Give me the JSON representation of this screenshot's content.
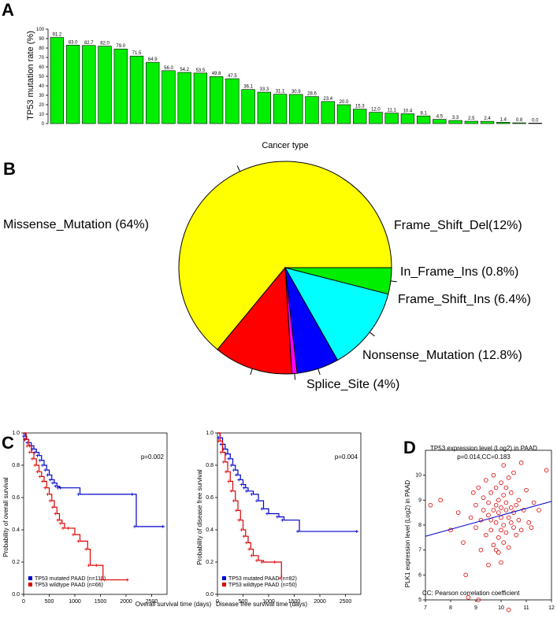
{
  "panels": {
    "a": "A",
    "b": "B",
    "c": "C",
    "d": "D"
  },
  "chart_data": [
    {
      "type": "bar",
      "panel": "A",
      "ylabel": "TP53 mutation rate (%)",
      "xlabel": "Cancer type",
      "ylim": [
        0,
        100
      ],
      "yticks": [
        0,
        10,
        20,
        30,
        40,
        50,
        60,
        70,
        80,
        90,
        100
      ],
      "values": [
        91.2,
        83.0,
        82.7,
        82.0,
        79.0,
        71.5,
        64.9,
        56.0,
        54.2,
        53.5,
        49.8,
        47.5,
        36.1,
        33.3,
        31.1,
        30.9,
        28.6,
        23.4,
        20.0,
        15.3,
        12.0,
        11.1,
        10.4,
        8.1,
        4.5,
        3.3,
        2.5,
        2.4,
        1.4,
        0.8,
        0.0
      ],
      "value_labels": [
        "91.2",
        "83.0",
        "82.7",
        "82.0",
        "79.0",
        "71.5",
        "64.9",
        "56.0",
        "54.2",
        "53.5",
        "49.8",
        "47.5",
        "36.1",
        "33.3",
        "31.1",
        "30.9",
        "28.6",
        "23.4",
        "20.0",
        "15.3",
        "12.0",
        "11.1",
        "10.4",
        "8.1",
        "4.5",
        "3.3",
        "2.5",
        "2.4",
        "1.4",
        "0.8",
        "0.0"
      ],
      "color": "#00ee00"
    },
    {
      "type": "pie",
      "panel": "B",
      "slices": [
        {
          "label": "Missense_Mutation (64%)",
          "value": 64,
          "color": "#ffff00"
        },
        {
          "label": "Frame_Shift_Del(12%)",
          "value": 12,
          "color": "#ff0000"
        },
        {
          "label": "In_Frame_Ins (0.8%)",
          "value": 0.8,
          "color": "#ff00ff"
        },
        {
          "label": "Frame_Shift_Ins (6.4%)",
          "value": 6.4,
          "color": "#0000ff"
        },
        {
          "label": "Nonsense_Mutation (12.8%)",
          "value": 12.8,
          "color": "#00ffff"
        },
        {
          "label": "Splice_Site (4%)",
          "value": 4,
          "color": "#00ee00"
        }
      ]
    },
    {
      "type": "line",
      "panel": "C",
      "subtype": "kaplan-meier",
      "xlabel": "Overall survival time (days)",
      "ylabel": "Probability of overall survival",
      "pvalue": "p=0.002",
      "xlim": [
        0,
        2800
      ],
      "ylim": [
        0,
        1
      ],
      "xticks": [
        0,
        500,
        1000,
        1500,
        2000,
        2500
      ],
      "yticks": [
        0.0,
        0.2,
        0.4,
        0.6,
        0.8,
        1.0
      ],
      "series": [
        {
          "name": "TP53 mutated PAAD (n=119)",
          "color": "#0000cc",
          "x": [
            0,
            30,
            60,
            100,
            150,
            200,
            250,
            300,
            350,
            400,
            450,
            500,
            550,
            600,
            650,
            700,
            750,
            1100,
            2150,
            2200,
            2750
          ],
          "y": [
            1.0,
            0.98,
            0.96,
            0.94,
            0.92,
            0.9,
            0.88,
            0.86,
            0.83,
            0.8,
            0.77,
            0.74,
            0.71,
            0.69,
            0.67,
            0.66,
            0.66,
            0.62,
            0.62,
            0.42,
            0.42
          ]
        },
        {
          "name": "TP53 wildtype PAAD (n=66)",
          "color": "#dd0000",
          "x": [
            0,
            50,
            100,
            150,
            200,
            250,
            300,
            350,
            400,
            450,
            500,
            550,
            600,
            650,
            700,
            750,
            800,
            900,
            1000,
            1100,
            1250,
            1300,
            1450,
            1550,
            2050
          ],
          "y": [
            1.0,
            0.96,
            0.92,
            0.88,
            0.84,
            0.8,
            0.76,
            0.73,
            0.7,
            0.66,
            0.62,
            0.58,
            0.54,
            0.5,
            0.46,
            0.44,
            0.41,
            0.41,
            0.37,
            0.33,
            0.28,
            0.18,
            0.18,
            0.09,
            0.09
          ]
        }
      ]
    },
    {
      "type": "line",
      "panel": "C",
      "subtype": "kaplan-meier",
      "xlabel": "Disease free survival time (days)",
      "ylabel": "Probability of disease free survival",
      "pvalue": "p=0.004",
      "xlim": [
        0,
        2800
      ],
      "ylim": [
        0,
        1
      ],
      "xticks": [
        0,
        500,
        1000,
        1500,
        2000,
        2500
      ],
      "yticks": [
        0.0,
        0.2,
        0.4,
        0.6,
        0.8,
        1.0
      ],
      "series": [
        {
          "name": "TP53 mutated PAAD (n=82)",
          "color": "#0000cc",
          "x": [
            0,
            50,
            100,
            150,
            200,
            250,
            300,
            350,
            400,
            450,
            500,
            550,
            600,
            700,
            800,
            900,
            1000,
            1200,
            1300,
            1600,
            2750
          ],
          "y": [
            1.0,
            0.97,
            0.93,
            0.9,
            0.87,
            0.84,
            0.8,
            0.77,
            0.74,
            0.71,
            0.68,
            0.66,
            0.64,
            0.62,
            0.58,
            0.53,
            0.5,
            0.48,
            0.46,
            0.39,
            0.39
          ]
        },
        {
          "name": "TP53 wildtype PAAD (n=50)",
          "color": "#dd0000",
          "x": [
            0,
            50,
            100,
            150,
            200,
            250,
            300,
            350,
            400,
            450,
            500,
            550,
            600,
            650,
            700,
            800,
            900,
            1150,
            1250
          ],
          "y": [
            1.0,
            0.95,
            0.88,
            0.82,
            0.76,
            0.7,
            0.64,
            0.58,
            0.52,
            0.46,
            0.4,
            0.36,
            0.32,
            0.28,
            0.24,
            0.21,
            0.2,
            0.2,
            0.1
          ]
        }
      ]
    },
    {
      "type": "scatter",
      "panel": "D",
      "title": "p=0.014,CC=0.183",
      "xlabel": "TP53 expression level (Log2) in PAAD",
      "ylabel": "PLK1 expression level (Log2) in PAAD",
      "note": "CC: Pearson correlation coefficient",
      "xlim": [
        7,
        12
      ],
      "ylim": [
        5,
        11
      ],
      "xticks": [
        7,
        8,
        9,
        10,
        11,
        12
      ],
      "yticks": [
        5,
        6,
        7,
        8,
        9,
        10
      ],
      "color": "#dd0000",
      "regression": {
        "x": [
          7,
          12
        ],
        "y": [
          7.55,
          8.95
        ],
        "color": "#0000cc"
      },
      "points": [
        [
          7.2,
          8.8
        ],
        [
          7.6,
          9.0
        ],
        [
          8.0,
          7.8
        ],
        [
          8.3,
          8.5
        ],
        [
          8.5,
          7.3
        ],
        [
          8.6,
          6.0
        ],
        [
          8.7,
          5.1
        ],
        [
          8.8,
          8.3
        ],
        [
          8.9,
          9.3
        ],
        [
          9.0,
          7.9
        ],
        [
          9.0,
          8.8
        ],
        [
          9.1,
          5.0
        ],
        [
          9.1,
          9.5
        ],
        [
          9.2,
          8.2
        ],
        [
          9.2,
          7.0
        ],
        [
          9.3,
          9.1
        ],
        [
          9.3,
          8.6
        ],
        [
          9.4,
          7.6
        ],
        [
          9.4,
          9.8
        ],
        [
          9.5,
          8.4
        ],
        [
          9.5,
          6.4
        ],
        [
          9.5,
          8.9
        ],
        [
          9.6,
          7.8
        ],
        [
          9.6,
          9.3
        ],
        [
          9.6,
          8.2
        ],
        [
          9.7,
          7.2
        ],
        [
          9.7,
          8.6
        ],
        [
          9.7,
          10.0
        ],
        [
          9.8,
          7.0
        ],
        [
          9.8,
          8.8
        ],
        [
          9.8,
          8.1
        ],
        [
          9.8,
          9.5
        ],
        [
          9.9,
          7.5
        ],
        [
          9.9,
          8.5
        ],
        [
          9.9,
          6.9
        ],
        [
          9.9,
          9.0
        ],
        [
          10.0,
          8.3
        ],
        [
          10.0,
          7.8
        ],
        [
          10.0,
          9.7
        ],
        [
          10.0,
          6.5
        ],
        [
          10.0,
          8.7
        ],
        [
          10.1,
          8.0
        ],
        [
          10.1,
          9.2
        ],
        [
          10.1,
          7.3
        ],
        [
          10.1,
          10.4
        ],
        [
          10.2,
          8.6
        ],
        [
          10.2,
          8.9
        ],
        [
          10.2,
          7.7
        ],
        [
          10.2,
          9.5
        ],
        [
          10.3,
          8.3
        ],
        [
          10.3,
          7.1
        ],
        [
          10.3,
          9.9
        ],
        [
          10.3,
          4.6
        ],
        [
          10.4,
          8.7
        ],
        [
          10.4,
          8.1
        ],
        [
          10.4,
          9.3
        ],
        [
          10.5,
          7.9
        ],
        [
          10.5,
          8.5
        ],
        [
          10.5,
          10.1
        ],
        [
          10.6,
          8.8
        ],
        [
          10.6,
          7.6
        ],
        [
          10.7,
          9.0
        ],
        [
          10.7,
          8.2
        ],
        [
          10.8,
          10.5
        ],
        [
          10.8,
          7.8
        ],
        [
          10.9,
          8.6
        ],
        [
          11.0,
          9.4
        ],
        [
          11.1,
          8.1
        ],
        [
          11.2,
          7.9
        ],
        [
          11.3,
          8.9
        ],
        [
          11.5,
          8.6
        ],
        [
          11.8,
          10.2
        ]
      ]
    }
  ]
}
